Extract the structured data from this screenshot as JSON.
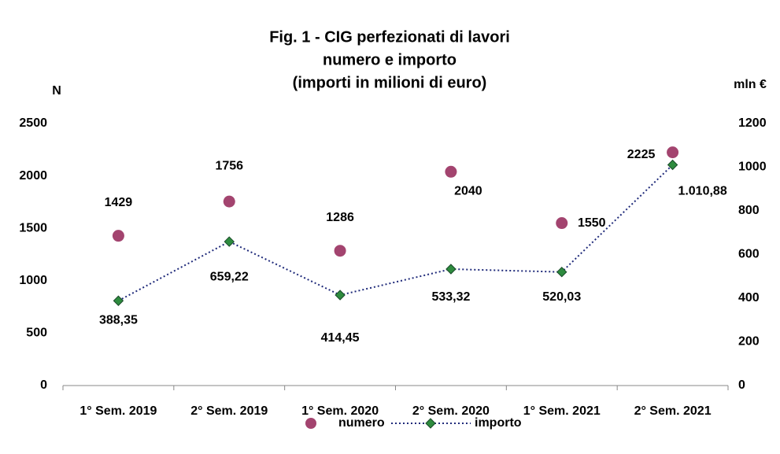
{
  "chart_data": {
    "type": "line",
    "title": [
      "Fig. 1 - CIG perfezionati di lavori",
      "numero e importo",
      "(importi in milioni di euro)"
    ],
    "y_label": "N",
    "y2_label": "mln €",
    "categories": [
      "1° Sem. 2019",
      "2° Sem. 2019",
      "1° Sem. 2020",
      "2° Sem. 2020",
      "1° Sem. 2021",
      "2° Sem. 2021"
    ],
    "series": [
      {
        "name": "numero",
        "type": "scatter",
        "marker": "circle",
        "color": "#a3446f",
        "values": [
          1429,
          1756,
          1286,
          2040,
          1550,
          2225
        ]
      },
      {
        "name": "importo",
        "type": "line",
        "marker": "diamond",
        "color": "#1f2a7a",
        "marker_color": "#2e8b3e",
        "line_style": "dotted",
        "axis": "y2",
        "values": [
          388.35,
          659.22,
          414.45,
          533.32,
          520.03,
          1010.88
        ],
        "value_labels": [
          "388,35",
          "659,22",
          "414,45",
          "533,32",
          "520,03",
          "1.010,88"
        ]
      }
    ],
    "ylim": [
      0,
      2500
    ],
    "yticks": [
      0,
      500,
      1000,
      1500,
      2000,
      2500
    ],
    "y2lim": [
      0,
      1200
    ],
    "y2ticks": [
      0,
      200,
      400,
      600,
      800,
      1000,
      1200
    ],
    "grid": false,
    "legend": "bottom"
  }
}
